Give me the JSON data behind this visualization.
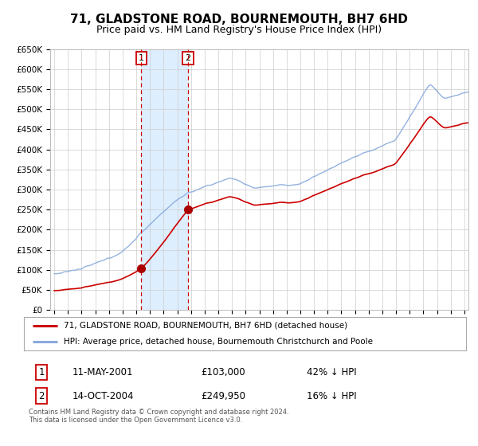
{
  "title": "71, GLADSTONE ROAD, BOURNEMOUTH, BH7 6HD",
  "subtitle": "Price paid vs. HM Land Registry's House Price Index (HPI)",
  "ylim": [
    0,
    650000
  ],
  "yticks": [
    0,
    50000,
    100000,
    150000,
    200000,
    250000,
    300000,
    350000,
    400000,
    450000,
    500000,
    550000,
    600000,
    650000
  ],
  "ytick_labels": [
    "£0",
    "£50K",
    "£100K",
    "£150K",
    "£200K",
    "£250K",
    "£300K",
    "£350K",
    "£400K",
    "£450K",
    "£500K",
    "£550K",
    "£600K",
    "£650K"
  ],
  "xlim_start": 1994.7,
  "xlim_end": 2025.3,
  "transaction1_x": 2001.36,
  "transaction1_y": 103000,
  "transaction2_x": 2004.79,
  "transaction2_y": 249950,
  "line_color_property": "#cc0000",
  "line_color_hpi": "#88aadd",
  "dot_color": "#aa0000",
  "shaded_color": "#ddeeff",
  "legend_label_property": "71, GLADSTONE ROAD, BOURNEMOUTH, BH7 6HD (detached house)",
  "legend_label_hpi": "HPI: Average price, detached house, Bournemouth Christchurch and Poole",
  "transaction1_date": "11-MAY-2001",
  "transaction1_price": "£103,000",
  "transaction1_hpi_text": "42% ↓ HPI",
  "transaction2_date": "14-OCT-2004",
  "transaction2_price": "£249,950",
  "transaction2_hpi_text": "16% ↓ HPI",
  "footer_text": "Contains HM Land Registry data © Crown copyright and database right 2024.\nThis data is licensed under the Open Government Licence v3.0.",
  "background_color": "#ffffff",
  "grid_color": "#cccccc",
  "title_fontsize": 11,
  "subtitle_fontsize": 9
}
